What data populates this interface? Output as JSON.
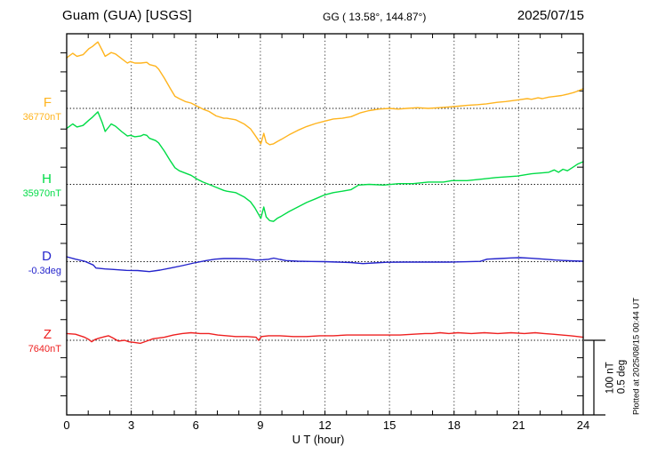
{
  "header": {
    "title": "Guam (GUA)  [USGS]",
    "coords": "GG ( 13.58°, 144.87°)",
    "date": "2025/07/15"
  },
  "scale_bar": {
    "line1": "100 nT",
    "line2": "0.5 deg"
  },
  "plotted_note": "Plotted at 2025/08/15 00:44 UT",
  "chart_data": {
    "type": "line",
    "title": "Guam (GUA) [USGS] magnetogram 2025/07/15",
    "x_axis": {
      "label": "U T (hour)",
      "min": 0,
      "max": 24,
      "ticks": [
        0,
        3,
        6,
        9,
        12,
        15,
        18,
        21,
        24
      ],
      "minor_step": 1,
      "grid": "dotted-vertical-at-major-ticks"
    },
    "scale": {
      "nT_per_bar": 100,
      "deg_per_bar": 0.5
    },
    "series": [
      {
        "id": "F",
        "label": "F",
        "base_label": "36770nT",
        "base_value": 36770,
        "unit": "nT",
        "color": "#FFB41E",
        "points": [
          [
            0,
            36837
          ],
          [
            0.28,
            36843
          ],
          [
            0.48,
            36839
          ],
          [
            0.76,
            36841
          ],
          [
            1.03,
            36849
          ],
          [
            1.2,
            36852
          ],
          [
            1.45,
            36858
          ],
          [
            1.65,
            36847
          ],
          [
            1.79,
            36839
          ],
          [
            2.07,
            36844
          ],
          [
            2.27,
            36842
          ],
          [
            2.55,
            36836
          ],
          [
            2.82,
            36830
          ],
          [
            2.96,
            36832
          ],
          [
            3.17,
            36830
          ],
          [
            3.44,
            36830
          ],
          [
            3.72,
            36831
          ],
          [
            3.85,
            36828
          ],
          [
            4.13,
            36826
          ],
          [
            4.27,
            36822
          ],
          [
            4.54,
            36810
          ],
          [
            4.82,
            36796
          ],
          [
            5.03,
            36786
          ],
          [
            5.23,
            36783
          ],
          [
            5.51,
            36779
          ],
          [
            5.78,
            36777
          ],
          [
            6.06,
            36773
          ],
          [
            6.33,
            36769
          ],
          [
            6.61,
            36766
          ],
          [
            6.95,
            36760
          ],
          [
            7.3,
            36757
          ],
          [
            7.44,
            36757
          ],
          [
            7.85,
            36755
          ],
          [
            8.26,
            36749
          ],
          [
            8.54,
            36743
          ],
          [
            8.74,
            36735
          ],
          [
            8.88,
            36729
          ],
          [
            9.02,
            36723
          ],
          [
            9.16,
            36737
          ],
          [
            9.27,
            36725
          ],
          [
            9.43,
            36722
          ],
          [
            9.61,
            36723
          ],
          [
            9.78,
            36726
          ],
          [
            9.98,
            36729
          ],
          [
            10.33,
            36735
          ],
          [
            10.74,
            36741
          ],
          [
            11.15,
            36746
          ],
          [
            11.57,
            36750
          ],
          [
            11.98,
            36753
          ],
          [
            12.39,
            36756
          ],
          [
            12.81,
            36757
          ],
          [
            13.22,
            36759
          ],
          [
            13.63,
            36764
          ],
          [
            14.05,
            36767
          ],
          [
            14.5,
            36769
          ],
          [
            15,
            36770
          ],
          [
            15.4,
            36769
          ],
          [
            15.8,
            36770
          ],
          [
            16.3,
            36771
          ],
          [
            16.8,
            36770
          ],
          [
            17.3,
            36771
          ],
          [
            17.8,
            36772
          ],
          [
            18.2,
            36773
          ],
          [
            18.6,
            36774
          ],
          [
            19.1,
            36775
          ],
          [
            19.5,
            36776
          ],
          [
            20,
            36778
          ],
          [
            20.4,
            36779
          ],
          [
            20.9,
            36781
          ],
          [
            21.4,
            36783
          ],
          [
            21.6,
            36782
          ],
          [
            21.9,
            36784
          ],
          [
            22.1,
            36783
          ],
          [
            22.4,
            36785
          ],
          [
            22.7,
            36786
          ],
          [
            23,
            36787
          ],
          [
            23.3,
            36789
          ],
          [
            23.55,
            36791
          ],
          [
            23.75,
            36793
          ],
          [
            24,
            36796
          ]
        ]
      },
      {
        "id": "H",
        "label": "H",
        "base_label": "35970nT",
        "base_value": 35970,
        "unit": "nT",
        "color": "#00DC46",
        "points": [
          [
            0,
            36044
          ],
          [
            0.28,
            36050
          ],
          [
            0.48,
            36046
          ],
          [
            0.76,
            36048
          ],
          [
            1.03,
            36055
          ],
          [
            1.2,
            36059
          ],
          [
            1.45,
            36066
          ],
          [
            1.65,
            36052
          ],
          [
            1.79,
            36040
          ],
          [
            2.07,
            36050
          ],
          [
            2.27,
            36047
          ],
          [
            2.55,
            36040
          ],
          [
            2.82,
            36034
          ],
          [
            2.96,
            36035
          ],
          [
            3.17,
            36033
          ],
          [
            3.44,
            36034
          ],
          [
            3.58,
            36036
          ],
          [
            3.72,
            36035
          ],
          [
            3.85,
            36031
          ],
          [
            4.13,
            36028
          ],
          [
            4.27,
            36025
          ],
          [
            4.54,
            36014
          ],
          [
            4.82,
            36001
          ],
          [
            5.03,
            35992
          ],
          [
            5.23,
            35988
          ],
          [
            5.51,
            35985
          ],
          [
            5.78,
            35982
          ],
          [
            6.06,
            35977
          ],
          [
            6.33,
            35973
          ],
          [
            6.61,
            35970
          ],
          [
            6.95,
            35966
          ],
          [
            7.3,
            35962
          ],
          [
            7.44,
            35961
          ],
          [
            7.85,
            35959
          ],
          [
            8.26,
            35953
          ],
          [
            8.54,
            35947
          ],
          [
            8.74,
            35939
          ],
          [
            8.88,
            35932
          ],
          [
            9.02,
            35925
          ],
          [
            9.16,
            35940
          ],
          [
            9.27,
            35927
          ],
          [
            9.43,
            35922
          ],
          [
            9.61,
            35921
          ],
          [
            9.78,
            35925
          ],
          [
            9.98,
            35928
          ],
          [
            10.33,
            35934
          ],
          [
            10.74,
            35940
          ],
          [
            11.15,
            35946
          ],
          [
            11.57,
            35951
          ],
          [
            11.98,
            35956
          ],
          [
            12.39,
            35959
          ],
          [
            12.81,
            35961
          ],
          [
            13.22,
            35963
          ],
          [
            13.56,
            35969
          ],
          [
            14.05,
            35970
          ],
          [
            14.73,
            35969
          ],
          [
            15.42,
            35971
          ],
          [
            16.1,
            35971
          ],
          [
            16.8,
            35973
          ],
          [
            17.5,
            35973
          ],
          [
            17.9,
            35975
          ],
          [
            18.6,
            35975
          ],
          [
            19.3,
            35977
          ],
          [
            19.96,
            35979
          ],
          [
            20.93,
            35981
          ],
          [
            21.6,
            35984
          ],
          [
            22.4,
            35986
          ],
          [
            22.65,
            35989
          ],
          [
            22.85,
            35986
          ],
          [
            23.06,
            35990
          ],
          [
            23.27,
            35988
          ],
          [
            23.54,
            35993
          ],
          [
            23.75,
            35997
          ],
          [
            24,
            36000
          ]
        ]
      },
      {
        "id": "D",
        "label": "D",
        "base_label": "-0.3deg",
        "base_value": -0.3,
        "unit": "deg",
        "color": "#2424CC",
        "points": [
          [
            0,
            -0.235
          ],
          [
            0.41,
            -0.267
          ],
          [
            0.83,
            -0.294
          ],
          [
            1.24,
            -0.345
          ],
          [
            1.36,
            -0.385
          ],
          [
            1.78,
            -0.396
          ],
          [
            2.19,
            -0.404
          ],
          [
            2.77,
            -0.415
          ],
          [
            3.3,
            -0.418
          ],
          [
            3.84,
            -0.432
          ],
          [
            4.34,
            -0.412
          ],
          [
            4.83,
            -0.385
          ],
          [
            5.37,
            -0.353
          ],
          [
            5.91,
            -0.318
          ],
          [
            6.48,
            -0.286
          ],
          [
            6.9,
            -0.267
          ],
          [
            7.31,
            -0.259
          ],
          [
            7.85,
            -0.259
          ],
          [
            8.39,
            -0.262
          ],
          [
            8.8,
            -0.279
          ],
          [
            9.13,
            -0.274
          ],
          [
            9.38,
            -0.268
          ],
          [
            9.62,
            -0.253
          ],
          [
            9.91,
            -0.271
          ],
          [
            10.2,
            -0.286
          ],
          [
            10.74,
            -0.294
          ],
          [
            11.36,
            -0.298
          ],
          [
            11.98,
            -0.3
          ],
          [
            12.6,
            -0.306
          ],
          [
            13.22,
            -0.312
          ],
          [
            13.76,
            -0.326
          ],
          [
            14.25,
            -0.318
          ],
          [
            14.87,
            -0.308
          ],
          [
            15.7,
            -0.306
          ],
          [
            16.73,
            -0.306
          ],
          [
            17.76,
            -0.306
          ],
          [
            18.59,
            -0.301
          ],
          [
            19.21,
            -0.296
          ],
          [
            19.54,
            -0.267
          ],
          [
            20.12,
            -0.259
          ],
          [
            20.65,
            -0.251
          ],
          [
            21.07,
            -0.247
          ],
          [
            21.6,
            -0.255
          ],
          [
            22.18,
            -0.267
          ],
          [
            22.72,
            -0.279
          ],
          [
            23.34,
            -0.288
          ],
          [
            24,
            -0.294
          ]
        ]
      },
      {
        "id": "Z",
        "label": "Z",
        "base_label": "7640nT",
        "base_value": 7640,
        "unit": "nT",
        "color": "#EE2020",
        "points": [
          [
            0,
            7649
          ],
          [
            0.41,
            7648
          ],
          [
            0.83,
            7644
          ],
          [
            1.03,
            7641
          ],
          [
            1.16,
            7638
          ],
          [
            1.32,
            7641
          ],
          [
            1.53,
            7643
          ],
          [
            1.78,
            7645
          ],
          [
            1.94,
            7646
          ],
          [
            2.15,
            7643
          ],
          [
            2.4,
            7639
          ],
          [
            2.69,
            7640
          ],
          [
            2.89,
            7638
          ],
          [
            3.18,
            7637
          ],
          [
            3.43,
            7636
          ],
          [
            3.72,
            7639
          ],
          [
            4.01,
            7642
          ],
          [
            4.54,
            7644
          ],
          [
            4.96,
            7647
          ],
          [
            5.37,
            7649
          ],
          [
            5.78,
            7650
          ],
          [
            6.2,
            7649
          ],
          [
            6.61,
            7649
          ],
          [
            7.02,
            7647
          ],
          [
            7.44,
            7646
          ],
          [
            7.85,
            7645
          ],
          [
            8.39,
            7645
          ],
          [
            8.8,
            7644
          ],
          [
            8.92,
            7640
          ],
          [
            9.05,
            7645
          ],
          [
            9.38,
            7646
          ],
          [
            9.91,
            7646
          ],
          [
            10.53,
            7645
          ],
          [
            11.15,
            7645
          ],
          [
            11.77,
            7646
          ],
          [
            12.39,
            7646
          ],
          [
            13.01,
            7647
          ],
          [
            13.63,
            7647
          ],
          [
            14.25,
            7647
          ],
          [
            14.87,
            7647
          ],
          [
            15.49,
            7647
          ],
          [
            16.11,
            7648
          ],
          [
            16.65,
            7649
          ],
          [
            16.98,
            7649
          ],
          [
            17.35,
            7650
          ],
          [
            17.76,
            7649
          ],
          [
            18.18,
            7650
          ],
          [
            18.8,
            7649
          ],
          [
            19.41,
            7650
          ],
          [
            20.03,
            7649
          ],
          [
            20.65,
            7650
          ],
          [
            21.27,
            7649
          ],
          [
            21.77,
            7650
          ],
          [
            22.18,
            7649
          ],
          [
            22.6,
            7648
          ],
          [
            23.01,
            7647
          ],
          [
            23.42,
            7646
          ],
          [
            23.75,
            7645
          ],
          [
            24,
            7644
          ]
        ]
      }
    ]
  }
}
